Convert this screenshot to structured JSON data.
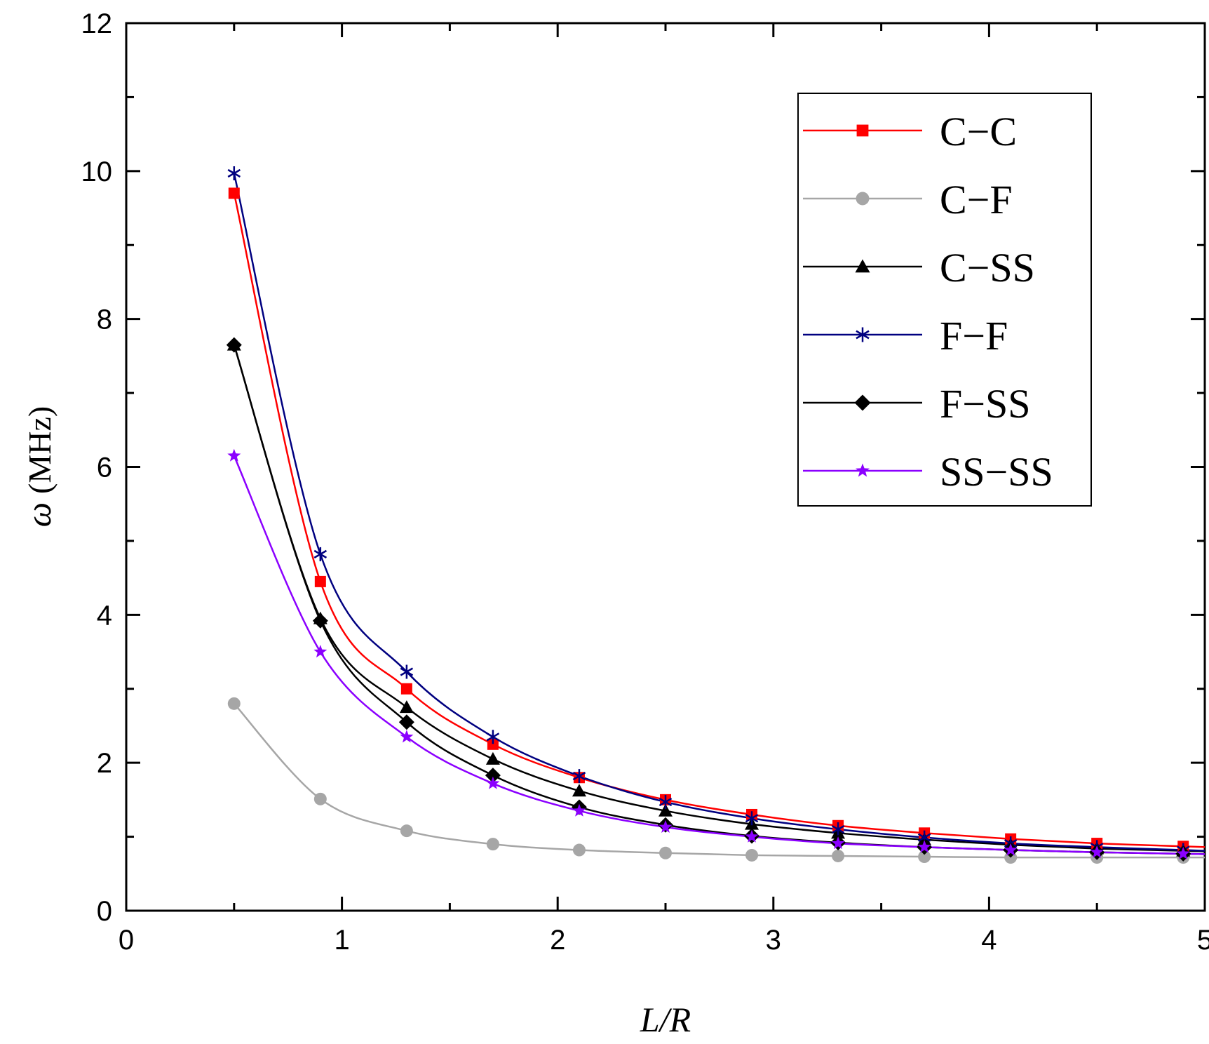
{
  "chart_data": {
    "type": "line",
    "xlabel": "L/R",
    "ylabel_symbol": "ω",
    "ylabel_unit": "(MHz)",
    "xlim": [
      0,
      5
    ],
    "ylim": [
      0,
      12
    ],
    "x_ticks": [
      0,
      1,
      2,
      3,
      4,
      5
    ],
    "y_ticks": [
      0,
      2,
      4,
      6,
      8,
      10,
      12
    ],
    "x_tick_labels": [
      "0",
      "1",
      "2",
      "3",
      "4",
      "5"
    ],
    "y_tick_labels": [
      "0",
      "2",
      "4",
      "6",
      "8",
      "10",
      "12"
    ],
    "grid": false,
    "legend_position": "top-right",
    "x": [
      0.5,
      0.9,
      1.3,
      1.7,
      2.1,
      2.5,
      2.9,
      3.3,
      3.7,
      4.1,
      4.5,
      4.9
    ],
    "series": [
      {
        "name": "C−C",
        "color": "#ff0000",
        "marker": "square",
        "values": [
          9.7,
          4.45,
          3.0,
          2.25,
          1.8,
          1.5,
          1.3,
          1.15,
          1.05,
          0.97,
          0.91,
          0.87
        ]
      },
      {
        "name": "C−F",
        "color": "#a6a6a6",
        "marker": "circle",
        "values": [
          2.8,
          1.51,
          1.08,
          0.9,
          0.82,
          0.78,
          0.75,
          0.74,
          0.73,
          0.72,
          0.72,
          0.72
        ]
      },
      {
        "name": "C−SS",
        "color": "#000000",
        "marker": "triangle",
        "values": [
          7.65,
          3.95,
          2.75,
          2.05,
          1.62,
          1.35,
          1.17,
          1.05,
          0.96,
          0.89,
          0.84,
          0.81
        ]
      },
      {
        "name": "F−F",
        "color": "#000080",
        "marker": "asterisk",
        "values": [
          9.97,
          4.82,
          3.23,
          2.35,
          1.82,
          1.47,
          1.25,
          1.1,
          0.99,
          0.91,
          0.86,
          0.82
        ]
      },
      {
        "name": "F−SS",
        "color": "#000000",
        "marker": "diamond",
        "values": [
          7.65,
          3.92,
          2.55,
          1.83,
          1.4,
          1.16,
          1.01,
          0.92,
          0.86,
          0.82,
          0.79,
          0.77
        ]
      },
      {
        "name": "SS−SS",
        "color": "#8b00ff",
        "marker": "star",
        "values": [
          6.15,
          3.5,
          2.35,
          1.72,
          1.35,
          1.13,
          1.0,
          0.91,
          0.86,
          0.82,
          0.79,
          0.77
        ]
      }
    ]
  }
}
